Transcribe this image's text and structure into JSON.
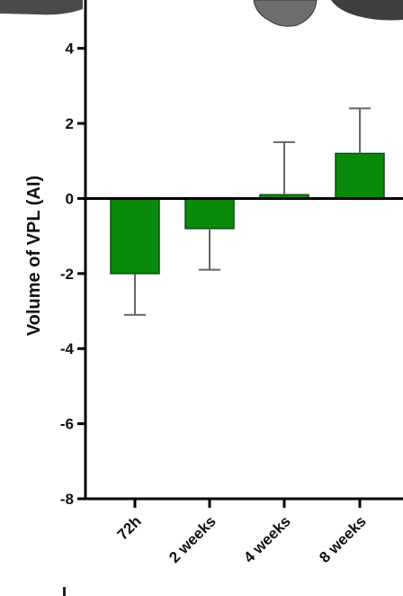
{
  "colors": {
    "bar_fill": "#0a8a0a",
    "bar_stroke": "#0b4d0b",
    "axis": "#000000",
    "error": "#666666"
  },
  "chart_data": {
    "type": "bar",
    "title": "",
    "xlabel": "",
    "ylabel": "Volume of VPL (AI)",
    "categories": [
      "72h",
      "2 weeks",
      "4 weeks",
      "8 weeks"
    ],
    "values": [
      -2.0,
      -0.8,
      0.1,
      1.2
    ],
    "error_high": [
      -3.1,
      -1.9,
      1.5,
      2.4
    ],
    "ylim": [
      -8,
      5
    ],
    "yticks": [
      -8,
      -6,
      -4,
      -2,
      0,
      2,
      4
    ],
    "ytick_labels": [
      "-8",
      "-6",
      "-4",
      "-2",
      "0",
      "2",
      "4"
    ],
    "grid": false,
    "legend": "none"
  }
}
